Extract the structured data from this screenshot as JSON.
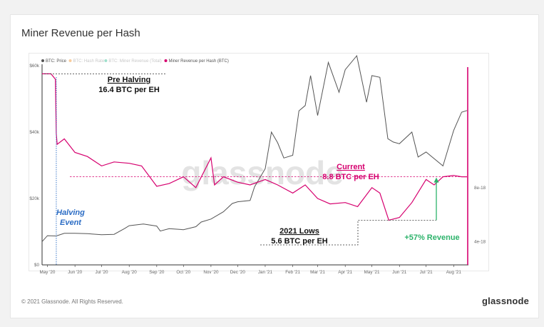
{
  "title": "Miner Revenue per Hash",
  "footer": {
    "copyright": "© 2021 Glassnode. All Rights Reserved.",
    "logo": "glassnode"
  },
  "watermark": "glassnode",
  "colors": {
    "price": "#555555",
    "revenue": "#d6006f",
    "halving": "#2b6cc4",
    "increase": "#2db36b",
    "hashrate": "#f39c3c",
    "miner_rev": "#40c19a"
  },
  "chart_data": {
    "type": "line",
    "title": "Miner Revenue per Hash",
    "xlabel": "",
    "ylabel": "",
    "x_ticks": [
      "May '20",
      "Jun '20",
      "Jul '20",
      "Aug '20",
      "Sep '20",
      "Oct '20",
      "Nov '20",
      "Dec '20",
      "Jan '21",
      "Feb '21",
      "Mar '21",
      "Apr '21",
      "May '21",
      "Jun '21",
      "Jul '21",
      "Aug '21"
    ],
    "y_left_ticks": [
      "$0",
      "$20k",
      "$40k",
      "$60k"
    ],
    "y_left_range": [
      0,
      60000
    ],
    "y_right_ticks": [
      "4e-18",
      "8e-18"
    ],
    "legend": [
      {
        "label": "BTC: Price",
        "faded": false,
        "color": "#555555"
      },
      {
        "label": "BTC: Hash Rate",
        "faded": true,
        "color": "#f39c3c"
      },
      {
        "label": "BTC: Miner Revenue (Total)",
        "faded": true,
        "color": "#40c19a"
      },
      {
        "label": "Miner Revenue per Hash (BTC)",
        "faded": false,
        "color": "#d6006f"
      }
    ],
    "legend_position": "top-left",
    "grid": false,
    "series": [
      {
        "name": "BTC: Price",
        "x": [
          "2020-04-25",
          "2020-05-01",
          "2020-05-11",
          "2020-05-20",
          "2020-06-01",
          "2020-06-15",
          "2020-07-01",
          "2020-07-15",
          "2020-07-27",
          "2020-08-01",
          "2020-08-17",
          "2020-09-01",
          "2020-09-05",
          "2020-09-15",
          "2020-10-01",
          "2020-10-15",
          "2020-10-21",
          "2020-11-01",
          "2020-11-15",
          "2020-11-25",
          "2020-12-01",
          "2020-12-15",
          "2020-12-20",
          "2021-01-01",
          "2021-01-08",
          "2021-01-15",
          "2021-01-22",
          "2021-02-01",
          "2021-02-08",
          "2021-02-15",
          "2021-02-21",
          "2021-03-01",
          "2021-03-13",
          "2021-03-25",
          "2021-04-01",
          "2021-04-14",
          "2021-04-25",
          "2021-05-01",
          "2021-05-10",
          "2021-05-19",
          "2021-05-25",
          "2021-06-01",
          "2021-06-15",
          "2021-06-22",
          "2021-07-01",
          "2021-07-20",
          "2021-08-01",
          "2021-08-10",
          "2021-08-16"
        ],
        "values": [
          7000,
          8800,
          8700,
          9500,
          9500,
          9400,
          9100,
          9200,
          11000,
          11800,
          12300,
          11700,
          10200,
          10900,
          10600,
          11500,
          12900,
          13800,
          16000,
          18500,
          19000,
          19400,
          23500,
          29000,
          40000,
          36800,
          32200,
          33000,
          46400,
          48000,
          57000,
          45000,
          61000,
          52000,
          58800,
          63000,
          49000,
          57000,
          56500,
          38000,
          37000,
          36500,
          40000,
          32500,
          34000,
          29800,
          40500,
          46000,
          46500
        ]
      },
      {
        "name": "Miner Revenue per Hash (BTC)",
        "x": [
          "2020-04-25",
          "2020-05-05",
          "2020-05-10",
          "2020-05-11",
          "2020-05-12",
          "2020-05-20",
          "2020-06-01",
          "2020-06-15",
          "2020-07-01",
          "2020-07-15",
          "2020-08-01",
          "2020-08-15",
          "2020-09-01",
          "2020-09-15",
          "2020-10-01",
          "2020-10-15",
          "2020-11-01",
          "2020-11-05",
          "2020-11-15",
          "2020-12-01",
          "2020-12-15",
          "2021-01-01",
          "2021-01-15",
          "2021-02-01",
          "2021-02-15",
          "2021-03-01",
          "2021-03-15",
          "2021-04-01",
          "2021-04-15",
          "2021-05-01",
          "2021-05-10",
          "2021-05-20",
          "2021-06-01",
          "2021-06-15",
          "2021-07-01",
          "2021-07-10",
          "2021-07-20",
          "2021-08-01",
          "2021-08-10",
          "2021-08-16"
        ],
        "values": [
          16.4,
          16.4,
          16.0,
          12.0,
          11.2,
          11.6,
          10.6,
          10.3,
          9.6,
          9.9,
          9.8,
          9.6,
          8.1,
          8.3,
          8.8,
          8.0,
          10.2,
          8.2,
          8.8,
          8.4,
          8.2,
          8.6,
          8.2,
          7.6,
          8.2,
          7.2,
          6.8,
          6.9,
          6.6,
          8.0,
          7.6,
          5.6,
          5.8,
          6.9,
          8.6,
          8.2,
          8.8,
          8.9,
          8.8,
          8.8
        ]
      }
    ],
    "reference_lines": [
      {
        "label": "Pre Halving 16.4 BTC per EH",
        "value": 16.4
      },
      {
        "label": "Current 8.8 BTC per EH",
        "value": 8.8
      },
      {
        "label": "2021 Lows 5.6 BTC per EH",
        "value": 5.6
      }
    ],
    "events": [
      {
        "label": "Halving Event",
        "x": "2020-05-11"
      }
    ],
    "annotations": {
      "pre_halving_title": "Pre Halving",
      "pre_halving_value": "16.4 BTC per EH",
      "halving_line1": "Halving",
      "halving_line2": "Event",
      "current_title": "Current",
      "current_value": "8.8 BTC per EH",
      "lows_title": "2021 Lows",
      "lows_value": "5.6 BTC per EH",
      "increase": "+57% Revenue"
    }
  }
}
